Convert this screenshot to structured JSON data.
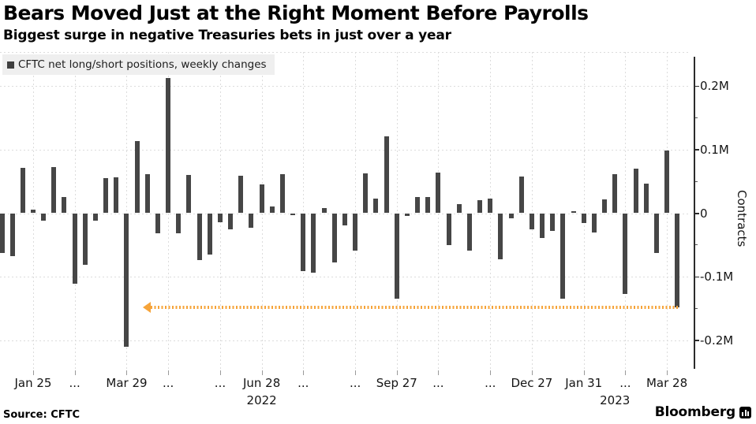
{
  "header": {
    "title": "Bears Moved Just at the Right Moment Before Payrolls",
    "subtitle": "Biggest surge in negative Treasuries bets in just over a year"
  },
  "legend": {
    "label": "CFTC net long/short positions, weekly changes",
    "marker_color": "#3f3f3f"
  },
  "footer": {
    "source": "Source: CFTC",
    "brand": "Bloomberg"
  },
  "chart_data": {
    "type": "bar",
    "title": "Bears Moved Just at the Right Moment Before Payrolls",
    "subtitle": "Biggest surge in negative Treasuries bets in just over a year",
    "series_name": "CFTC net long/short positions, weekly changes",
    "ylabel": "Contracts",
    "unit": "millions of contracts (M)",
    "ylim": [
      -0.25,
      0.25
    ],
    "grid": true,
    "legend_position": "top-left",
    "bar_color": "#464646",
    "grid_color": "#dcdcdc",
    "axis_color": "#2b2b2b",
    "annotation_color": "#f6a43a",
    "y_ticks": [
      {
        "label": "0.2M",
        "value": 0.2
      },
      {
        "label": "0.1M",
        "value": 0.1
      },
      {
        "label": "0",
        "value": 0
      },
      {
        "label": "-0.1M",
        "value": -0.1
      },
      {
        "label": "-0.2M",
        "value": -0.2
      }
    ],
    "y_minor_ticks": [
      0.15,
      0.05,
      -0.05,
      -0.15
    ],
    "x_ticks": [
      {
        "label": "Jan 25",
        "bar": 3
      },
      {
        "label": "...",
        "bar": 7
      },
      {
        "label": "Mar 29",
        "bar": 12
      },
      {
        "label": "...",
        "bar": 16
      },
      {
        "label": "...",
        "bar": 21
      },
      {
        "label": "Jun 28",
        "bar": 25
      },
      {
        "label": "...",
        "bar": 29
      },
      {
        "label": "...",
        "bar": 34
      },
      {
        "label": "Sep 27",
        "bar": 38
      },
      {
        "label": "...",
        "bar": 42
      },
      {
        "label": "...",
        "bar": 47
      },
      {
        "label": "Dec 27",
        "bar": 51
      },
      {
        "label": "Jan 31",
        "bar": 56
      },
      {
        "label": "...",
        "bar": 60
      },
      {
        "label": "Mar 28",
        "bar": 64
      }
    ],
    "year_labels": [
      {
        "label": "2022",
        "bar": 25
      },
      {
        "label": "2023",
        "bar": 59
      }
    ],
    "values": [
      -0.063,
      -0.068,
      0.071,
      0.006,
      -0.012,
      0.072,
      0.026,
      -0.111,
      -0.081,
      -0.012,
      0.055,
      0.057,
      -0.21,
      0.113,
      0.061,
      -0.031,
      0.213,
      -0.031,
      0.06,
      -0.074,
      -0.065,
      -0.014,
      -0.026,
      0.059,
      -0.023,
      0.045,
      0.011,
      0.061,
      -0.002,
      -0.091,
      -0.094,
      0.008,
      -0.077,
      -0.019,
      -0.059,
      0.063,
      0.023,
      0.121,
      -0.135,
      -0.004,
      0.025,
      0.025,
      0.064,
      -0.05,
      0.014,
      -0.059,
      0.021,
      0.023,
      -0.072,
      -0.008,
      0.058,
      -0.026,
      -0.039,
      -0.028,
      -0.134,
      0.003,
      -0.015,
      -0.03,
      0.022,
      0.061,
      -0.127,
      0.07,
      0.047,
      -0.063,
      0.098,
      -0.148
    ],
    "annotation": {
      "type": "dotted-left-arrow",
      "from_bar": 14,
      "to_bar": 65,
      "value": -0.148
    }
  }
}
